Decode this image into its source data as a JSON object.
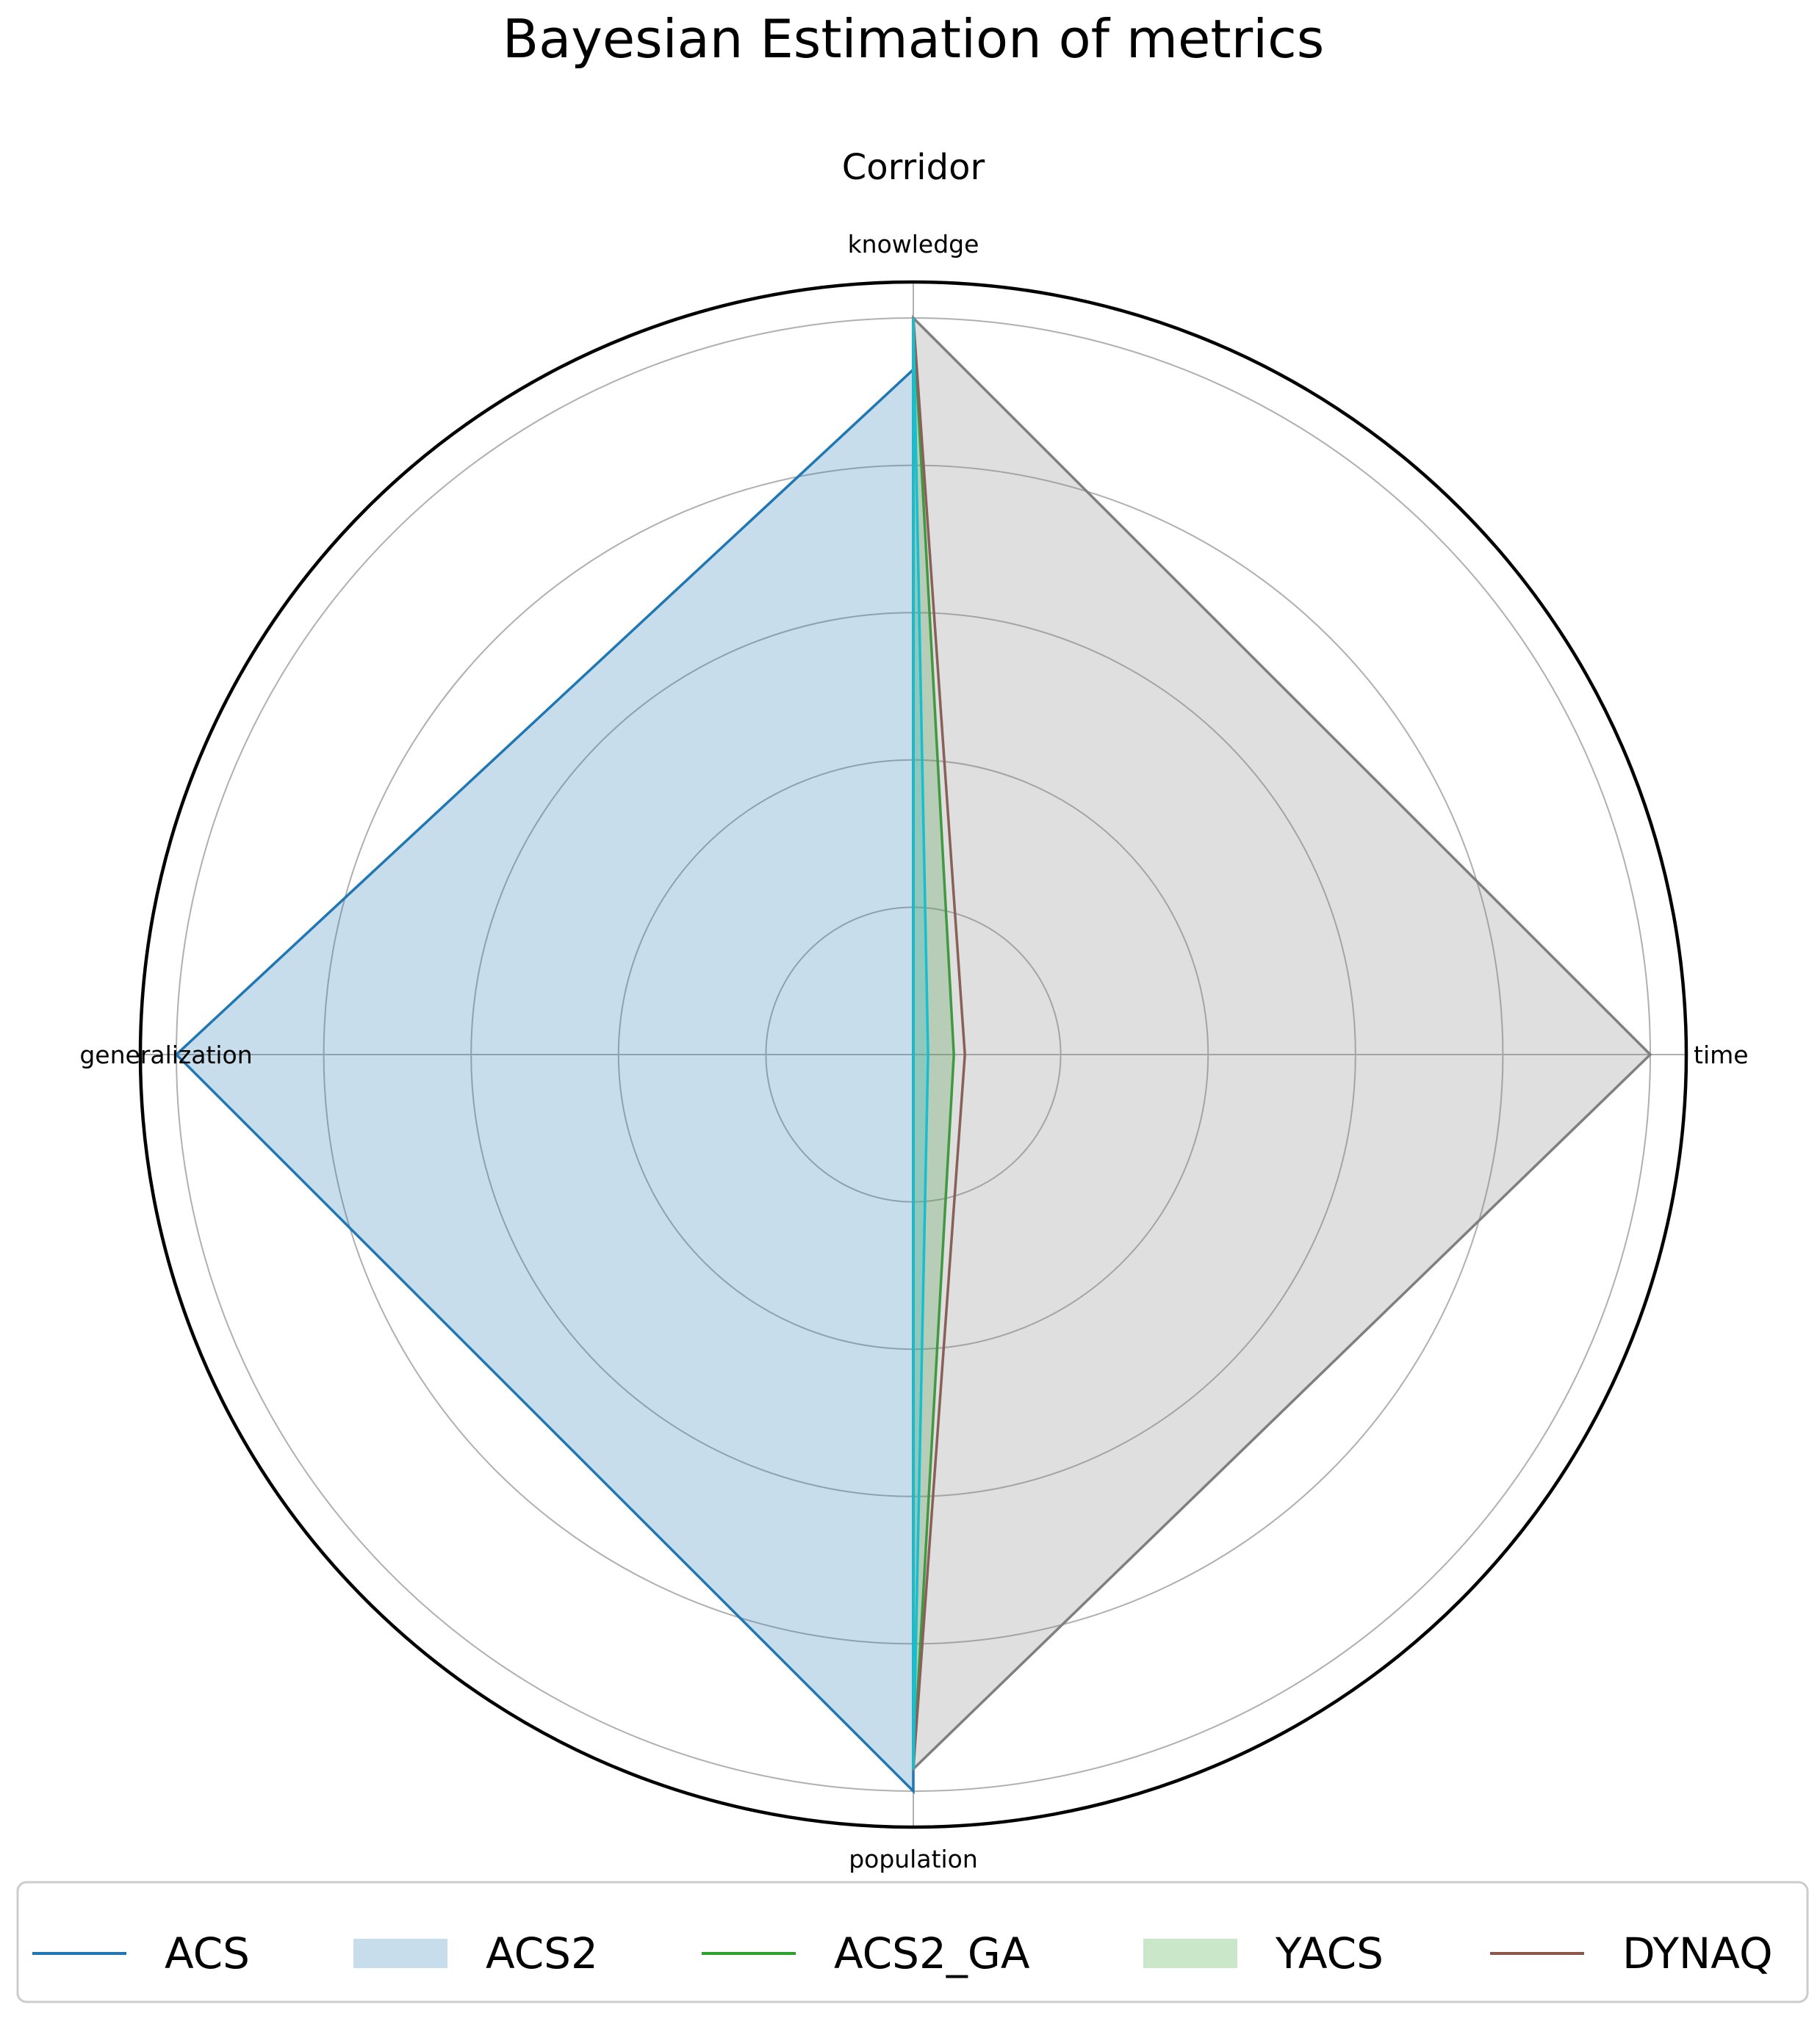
{
  "figure_title": "Bayesian Estimation of metrics",
  "chart_data": {
    "type": "radar",
    "title": "Corridor",
    "axes": [
      "knowledge",
      "time",
      "population",
      "generalization"
    ],
    "rlim": [
      0,
      1
    ],
    "rings": [
      0.2,
      0.4,
      0.6,
      0.8,
      1.0
    ],
    "grid": true,
    "legend_position": "bottom",
    "series": [
      {
        "name": "ACS",
        "values": [
          0.93,
          0.0,
          1.0,
          1.0
        ],
        "color": "#1f77b4",
        "style": "line"
      },
      {
        "name": "ACS2",
        "values": [
          0.93,
          0.0,
          1.0,
          1.0
        ],
        "color": "#1f77b4",
        "style": "fill"
      },
      {
        "name": "ACS2_GA",
        "values": [
          1.0,
          0.055,
          0.97,
          0.0
        ],
        "color": "#2ca02c",
        "style": "line"
      },
      {
        "name": "YACS",
        "values": [
          1.0,
          0.055,
          0.97,
          0.0
        ],
        "color": "#2ca02c",
        "style": "fill"
      },
      {
        "name": "DYNAQ",
        "values": [
          1.0,
          0.07,
          0.97,
          0.0
        ],
        "color": "#8c564b",
        "style": "line"
      },
      {
        "name": "",
        "values": [
          1.0,
          1.0,
          0.97,
          0.0
        ],
        "color": "#7f7f7f",
        "style": "line-fill"
      },
      {
        "name": "",
        "values": [
          1.0,
          0.02,
          0.97,
          0.0
        ],
        "color": "#17becf",
        "style": "line-fill"
      }
    ]
  }
}
